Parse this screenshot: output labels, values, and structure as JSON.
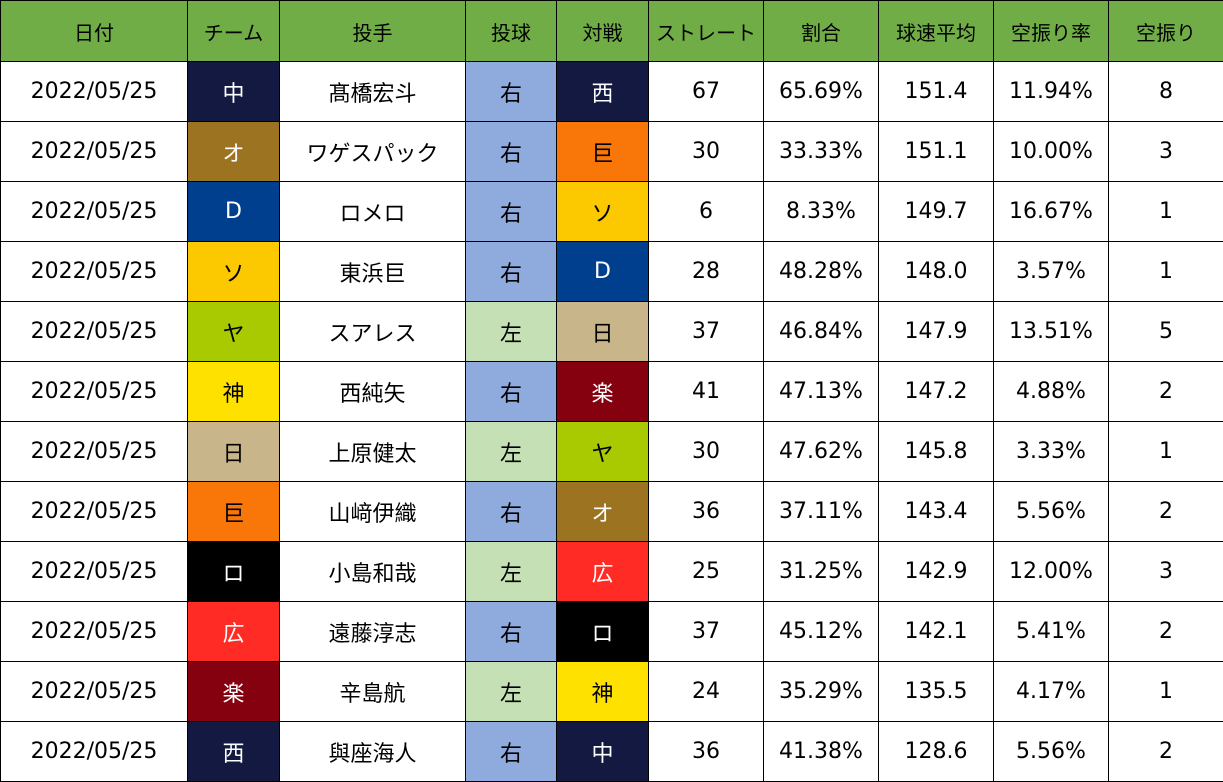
{
  "colors": {
    "header_bg": "#70ad47",
    "hand_right_bg": "#8faadc",
    "hand_left_bg": "#c5e0b4"
  },
  "team_colors": {
    "中": {
      "bg": "#131940",
      "fg": "#ffffff"
    },
    "オ": {
      "bg": "#9c7421",
      "fg": "#ffffff"
    },
    "D": {
      "bg": "#003f8e",
      "fg": "#ffffff"
    },
    "ソ": {
      "bg": "#fcc800",
      "fg": "#000000"
    },
    "ヤ": {
      "bg": "#a9ca00",
      "fg": "#000000"
    },
    "神": {
      "bg": "#ffe100",
      "fg": "#000000"
    },
    "日": {
      "bg": "#c8b58a",
      "fg": "#000000"
    },
    "巨": {
      "bg": "#f97709",
      "fg": "#000000"
    },
    "ロ": {
      "bg": "#000000",
      "fg": "#ffffff"
    },
    "広": {
      "bg": "#ff2b24",
      "fg": "#ffffff"
    },
    "楽": {
      "bg": "#85010f",
      "fg": "#ffffff"
    },
    "西": {
      "bg": "#131940",
      "fg": "#ffffff"
    }
  },
  "headers": [
    "日付",
    "チーム",
    "投手",
    "投球",
    "対戦",
    "ストレート",
    "割合",
    "球速平均",
    "空振り率",
    "空振り"
  ],
  "rows": [
    {
      "date": "2022/05/25",
      "team": "中",
      "pitcher": "髙橋宏斗",
      "hand": "右",
      "opponent": "西",
      "straight": "67",
      "ratio": "65.69%",
      "avg_speed": "151.4",
      "whiff_rate": "11.94%",
      "whiffs": "8"
    },
    {
      "date": "2022/05/25",
      "team": "オ",
      "pitcher": "ワゲスパック",
      "hand": "右",
      "opponent": "巨",
      "straight": "30",
      "ratio": "33.33%",
      "avg_speed": "151.1",
      "whiff_rate": "10.00%",
      "whiffs": "3"
    },
    {
      "date": "2022/05/25",
      "team": "D",
      "pitcher": "ロメロ",
      "hand": "右",
      "opponent": "ソ",
      "straight": "6",
      "ratio": "8.33%",
      "avg_speed": "149.7",
      "whiff_rate": "16.67%",
      "whiffs": "1"
    },
    {
      "date": "2022/05/25",
      "team": "ソ",
      "pitcher": "東浜巨",
      "hand": "右",
      "opponent": "D",
      "straight": "28",
      "ratio": "48.28%",
      "avg_speed": "148.0",
      "whiff_rate": "3.57%",
      "whiffs": "1"
    },
    {
      "date": "2022/05/25",
      "team": "ヤ",
      "pitcher": "スアレス",
      "hand": "左",
      "opponent": "日",
      "straight": "37",
      "ratio": "46.84%",
      "avg_speed": "147.9",
      "whiff_rate": "13.51%",
      "whiffs": "5"
    },
    {
      "date": "2022/05/25",
      "team": "神",
      "pitcher": "西純矢",
      "hand": "右",
      "opponent": "楽",
      "straight": "41",
      "ratio": "47.13%",
      "avg_speed": "147.2",
      "whiff_rate": "4.88%",
      "whiffs": "2"
    },
    {
      "date": "2022/05/25",
      "team": "日",
      "pitcher": "上原健太",
      "hand": "左",
      "opponent": "ヤ",
      "straight": "30",
      "ratio": "47.62%",
      "avg_speed": "145.8",
      "whiff_rate": "3.33%",
      "whiffs": "1"
    },
    {
      "date": "2022/05/25",
      "team": "巨",
      "pitcher": "山﨑伊織",
      "hand": "右",
      "opponent": "オ",
      "straight": "36",
      "ratio": "37.11%",
      "avg_speed": "143.4",
      "whiff_rate": "5.56%",
      "whiffs": "2"
    },
    {
      "date": "2022/05/25",
      "team": "ロ",
      "pitcher": "小島和哉",
      "hand": "左",
      "opponent": "広",
      "straight": "25",
      "ratio": "31.25%",
      "avg_speed": "142.9",
      "whiff_rate": "12.00%",
      "whiffs": "3"
    },
    {
      "date": "2022/05/25",
      "team": "広",
      "pitcher": "遠藤淳志",
      "hand": "右",
      "opponent": "ロ",
      "straight": "37",
      "ratio": "45.12%",
      "avg_speed": "142.1",
      "whiff_rate": "5.41%",
      "whiffs": "2"
    },
    {
      "date": "2022/05/25",
      "team": "楽",
      "pitcher": "辛島航",
      "hand": "左",
      "opponent": "神",
      "straight": "24",
      "ratio": "35.29%",
      "avg_speed": "135.5",
      "whiff_rate": "4.17%",
      "whiffs": "1"
    },
    {
      "date": "2022/05/25",
      "team": "西",
      "pitcher": "與座海人",
      "hand": "右",
      "opponent": "中",
      "straight": "36",
      "ratio": "41.38%",
      "avg_speed": "128.6",
      "whiff_rate": "5.56%",
      "whiffs": "2"
    }
  ]
}
